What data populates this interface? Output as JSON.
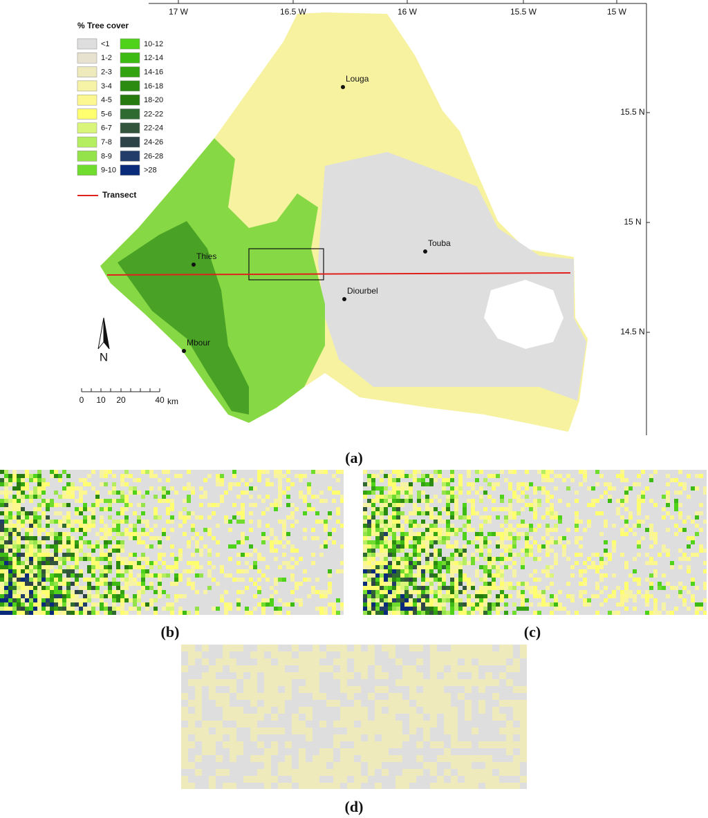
{
  "legend": {
    "title": "% Tree cover",
    "items": [
      {
        "label": "<1",
        "color": "#dedede"
      },
      {
        "label": "1-2",
        "color": "#e6e2cf"
      },
      {
        "label": "2-3",
        "color": "#eeeabb"
      },
      {
        "label": "3-4",
        "color": "#f7f3a6"
      },
      {
        "label": "4-5",
        "color": "#fdf78f"
      },
      {
        "label": "5-6",
        "color": "#ffff70"
      },
      {
        "label": "6-7",
        "color": "#d9f57a"
      },
      {
        "label": "7-8",
        "color": "#b5ee60"
      },
      {
        "label": "8-9",
        "color": "#94e34a"
      },
      {
        "label": "9-10",
        "color": "#6fdc2e"
      },
      {
        "label": "10-12",
        "color": "#4fd21a"
      },
      {
        "label": "12-14",
        "color": "#3dba14"
      },
      {
        "label": "14-16",
        "color": "#34a312"
      },
      {
        "label": "16-18",
        "color": "#2b8a10"
      },
      {
        "label": "18-20",
        "color": "#267a0e"
      },
      {
        "label": "22-22",
        "color": "#2f6a31"
      },
      {
        "label": "22-24",
        "color": "#33553c"
      },
      {
        "label": "24-26",
        "color": "#2d4348"
      },
      {
        "label": "26-28",
        "color": "#223d6a"
      },
      {
        "label": ">28",
        "color": "#0a2a7a"
      }
    ]
  },
  "transect": {
    "label": "Transect",
    "color": "#e0201c"
  },
  "cities": [
    "Louga",
    "Thies",
    "Touba",
    "Diourbel",
    "Mbour"
  ],
  "longitude_labels": [
    "17 W",
    "16.5 W",
    "16 W",
    "15.5 W",
    "15 W"
  ],
  "latitude_labels": [
    "15.5 N",
    "15 N",
    "14.5 N"
  ],
  "scale_bar": {
    "labels": [
      "0",
      "10",
      "20",
      "40"
    ],
    "unit": "km"
  },
  "north_label": "N",
  "panel_labels": [
    "(a)",
    "(b)",
    "(c)",
    "(d)"
  ]
}
